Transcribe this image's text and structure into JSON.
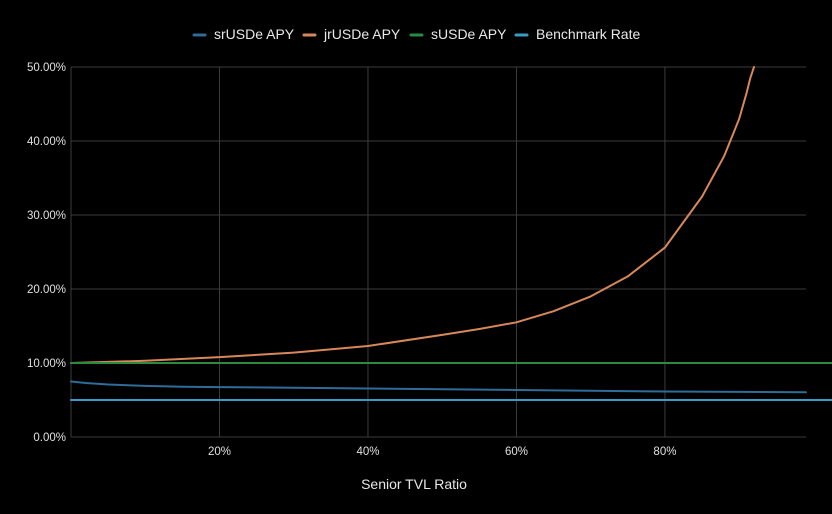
{
  "chart_data": {
    "type": "line",
    "title": "",
    "xlabel": "Senior TVL Ratio",
    "ylabel": "",
    "xlim": [
      0.0,
      0.99
    ],
    "ylim": [
      0,
      50
    ],
    "x_ticks": [
      {
        "value": 0.2,
        "label": "20%"
      },
      {
        "value": 0.4,
        "label": "40%"
      },
      {
        "value": 0.6,
        "label": "60%"
      },
      {
        "value": 0.8,
        "label": "80%"
      }
    ],
    "y_ticks": [
      {
        "value": 0,
        "label": "0.00%"
      },
      {
        "value": 10,
        "label": "10.00%"
      },
      {
        "value": 20,
        "label": "20.00%"
      },
      {
        "value": 30,
        "label": "30.00%"
      },
      {
        "value": 40,
        "label": "40.00%"
      },
      {
        "value": 50,
        "label": "50.00%"
      }
    ],
    "grid": true,
    "legend_position": "top-center",
    "series": [
      {
        "name": "srUSDe APY",
        "color": "#2e6c9a",
        "x": [
          0.0,
          0.02,
          0.05,
          0.1,
          0.15,
          0.2,
          0.3,
          0.4,
          0.5,
          0.6,
          0.7,
          0.8,
          0.9,
          0.99
        ],
        "values": [
          7.5,
          7.3,
          7.1,
          6.9,
          6.8,
          6.75,
          6.65,
          6.55,
          6.45,
          6.35,
          6.25,
          6.15,
          6.1,
          6.05
        ]
      },
      {
        "name": "jrUSDe APY",
        "color": "#d8875a",
        "x": [
          0.0,
          0.1,
          0.2,
          0.3,
          0.4,
          0.5,
          0.55,
          0.6,
          0.65,
          0.7,
          0.75,
          0.8,
          0.85,
          0.88,
          0.9,
          0.91,
          0.915,
          0.92
        ],
        "values": [
          10.0,
          10.3,
          10.8,
          11.4,
          12.3,
          13.8,
          14.6,
          15.5,
          17.0,
          19.0,
          21.7,
          25.6,
          32.5,
          38.0,
          43.0,
          46.5,
          48.5,
          50.0
        ]
      },
      {
        "name": "sUSDe APY",
        "color": "#2c8a3c",
        "x": [
          0.0,
          0.99
        ],
        "values": [
          10.0,
          10.0
        ]
      },
      {
        "name": "Benchmark Rate",
        "color": "#3a9bc7",
        "x": [
          0.0,
          0.99
        ],
        "values": [
          5.0,
          5.0
        ]
      }
    ]
  }
}
